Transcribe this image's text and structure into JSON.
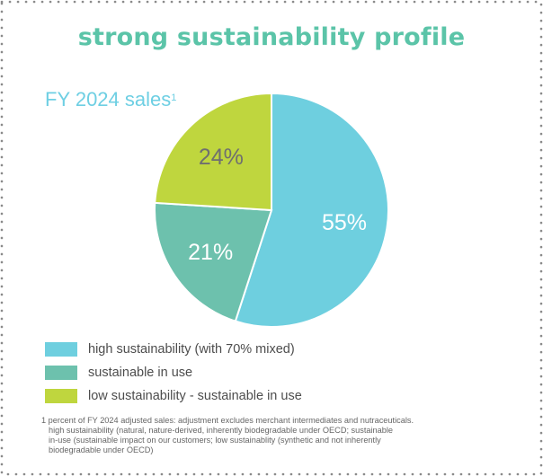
{
  "title": "strong sustainability profile",
  "subtitle": "FY 2024 sales",
  "subtitle_marker": "1",
  "colors": {
    "title": "#5bc4a8",
    "subtitle": "#6ecfe3",
    "border_dots": "#888888"
  },
  "chart_data": {
    "type": "pie",
    "slices": [
      {
        "label": "high sustainability (with 70% mixed)",
        "value": 55,
        "display": "55%",
        "color": "#6ecfdf"
      },
      {
        "label": "sustainable in use",
        "value": 21,
        "display": "21%",
        "color": "#6dc1ad"
      },
      {
        "label": "low sustainability - sustainable in use",
        "value": 24,
        "display": "24%",
        "color": "#bfd63e"
      }
    ],
    "legend_position": "bottom-left"
  },
  "footnote": {
    "line1": "1 percent of FY 2024 adjusted sales: adjustment excludes merchant intermediates and nutraceuticals.",
    "line2": "high sustainability (natural, nature-derived, inherently biodegradable under OECD; sustainable",
    "line3": "in-use (sustainable impact on our customers; low sustainablity (synthetic and not inherently",
    "line4": "biodegradable under OECD)"
  }
}
